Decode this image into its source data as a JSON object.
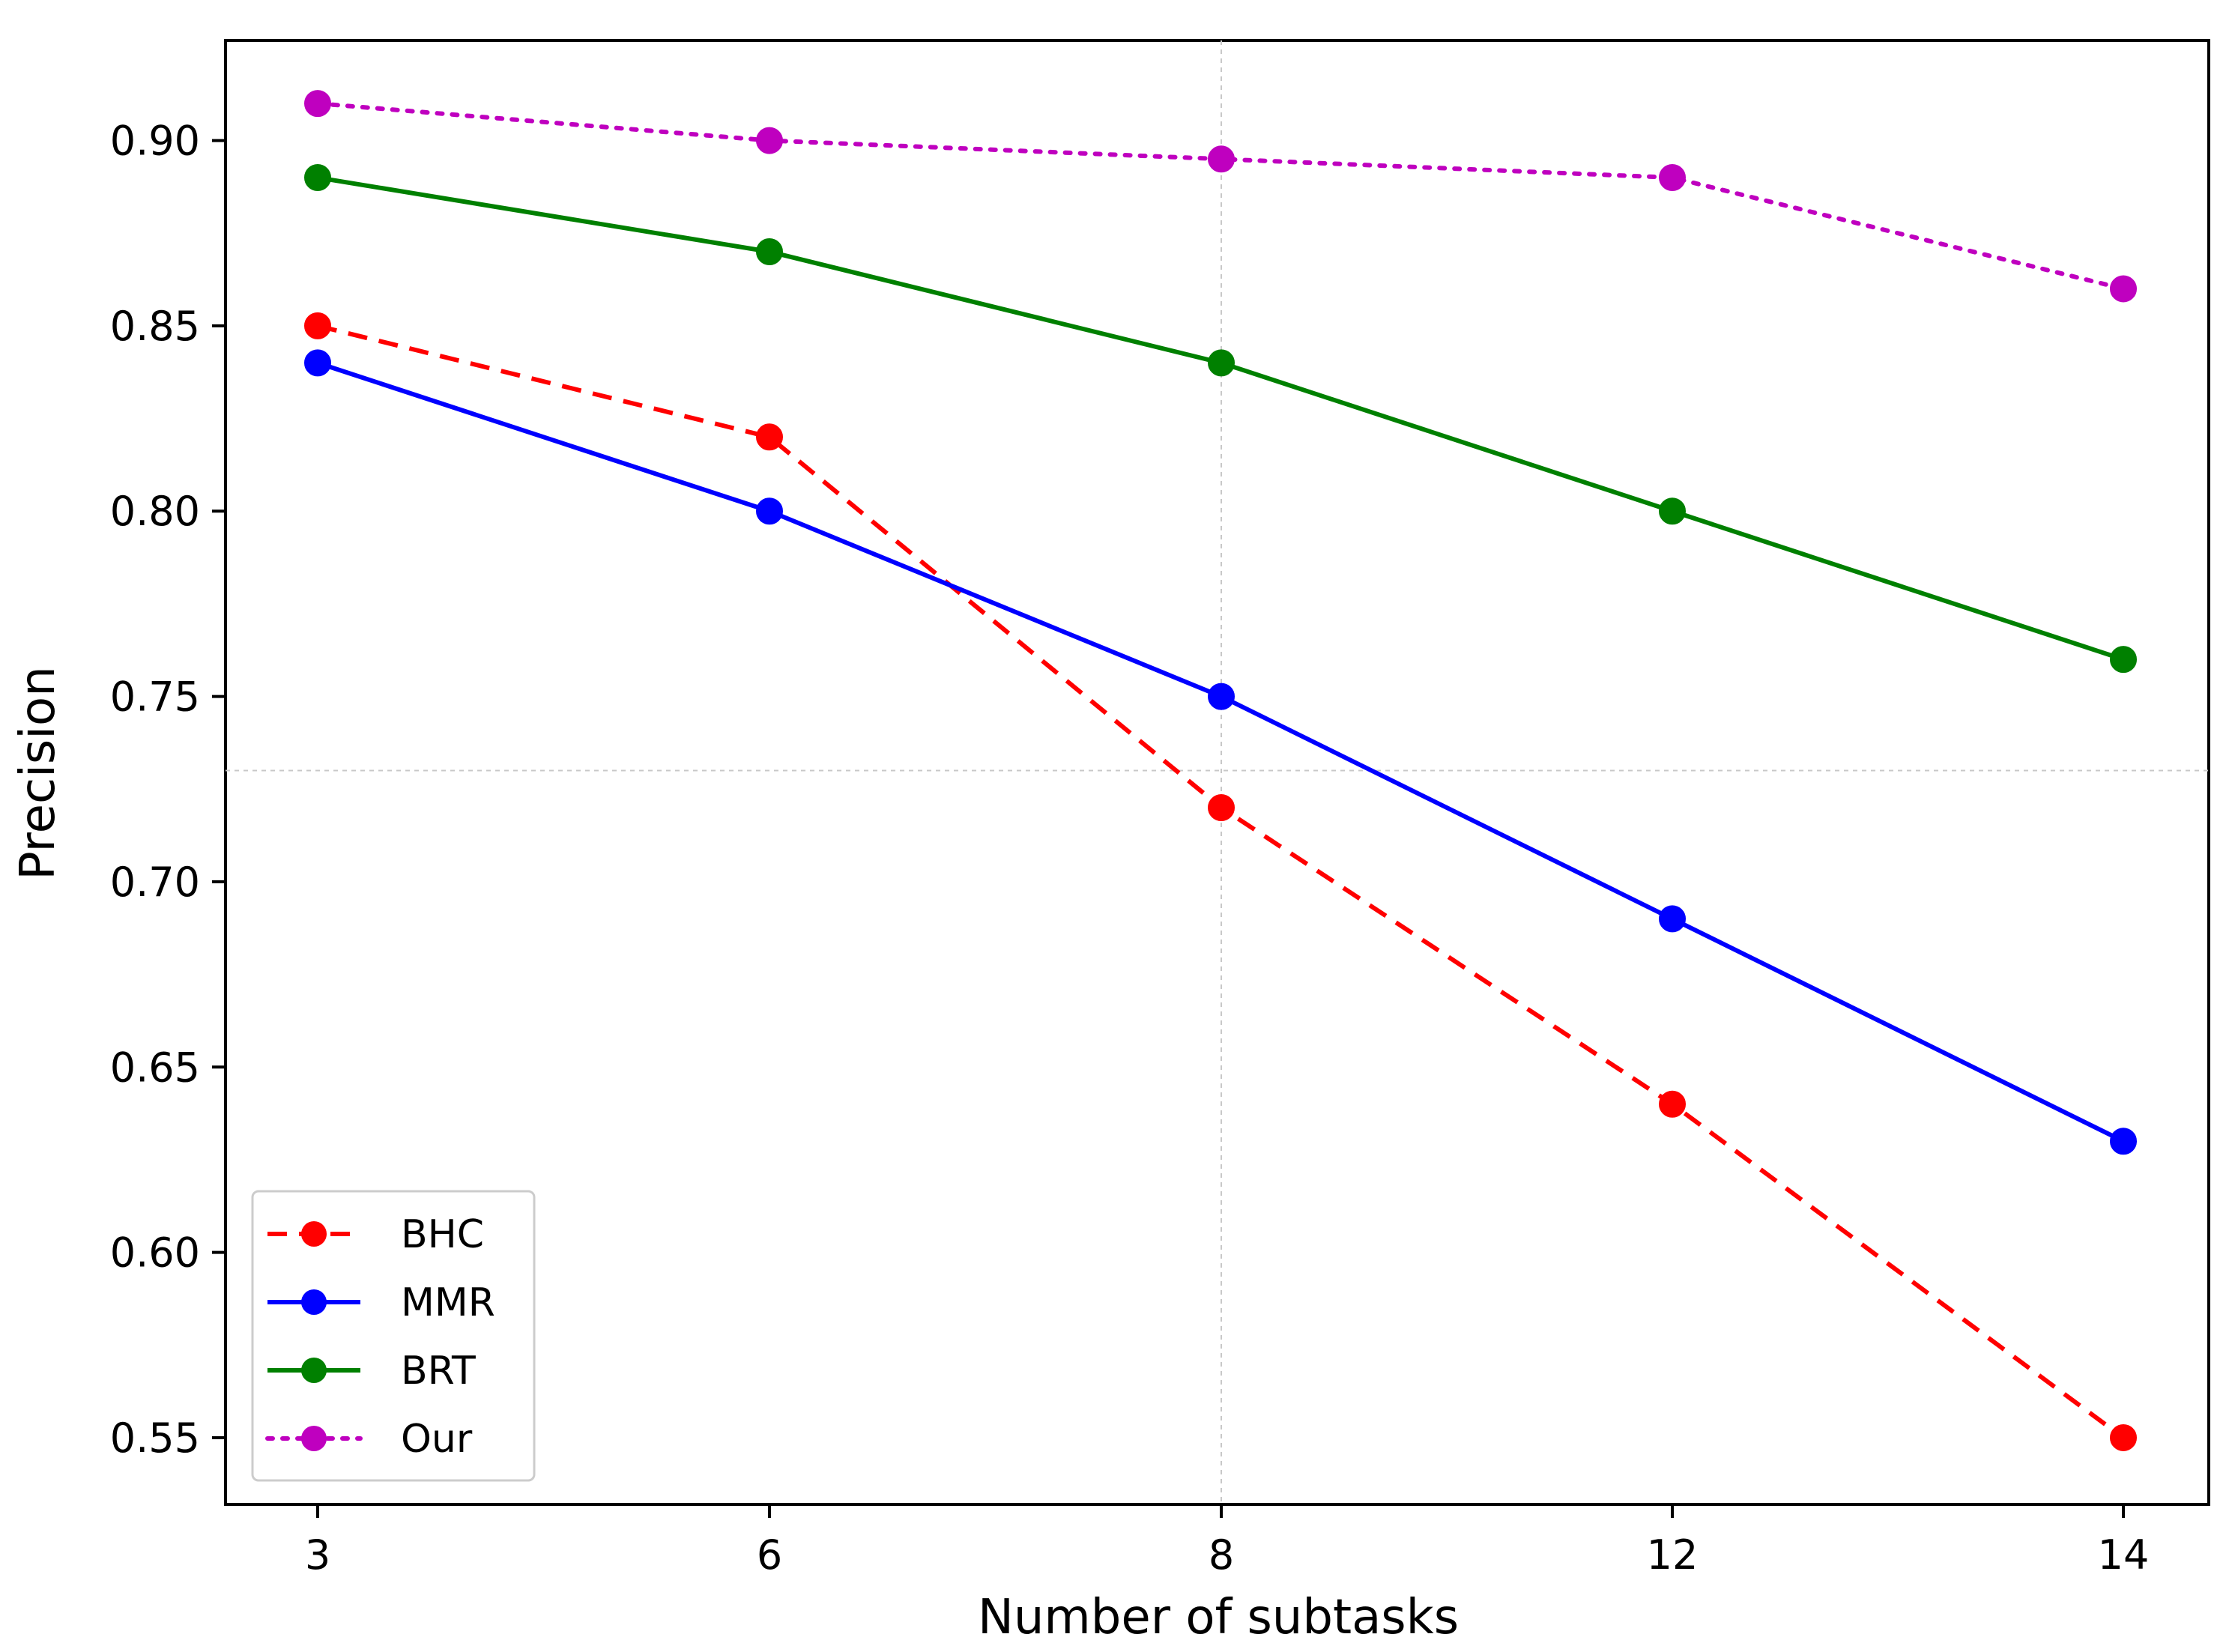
{
  "chart_data": {
    "type": "line",
    "title": "",
    "xlabel": "Number of subtasks",
    "ylabel": "Precision",
    "categories": [
      "3",
      "6",
      "8",
      "12",
      "14"
    ],
    "ylim": [
      0.532,
      0.927
    ],
    "yticks": [
      "0.55",
      "0.60",
      "0.65",
      "0.70",
      "0.75",
      "0.80",
      "0.85",
      "0.90"
    ],
    "grid": {
      "x_reference_category": "8",
      "y_reference_value": 0.73
    },
    "legend_position": "bottom-left",
    "series": [
      {
        "name": "BHC",
        "color": "#ff0000",
        "line_style": "dashed",
        "values": [
          0.85,
          0.82,
          0.72,
          0.64,
          0.55
        ]
      },
      {
        "name": "MMR",
        "color": "#0000ff",
        "line_style": "solid",
        "values": [
          0.84,
          0.8,
          0.75,
          0.69,
          0.63
        ]
      },
      {
        "name": "BRT",
        "color": "#008000",
        "line_style": "solid",
        "values": [
          0.89,
          0.87,
          0.84,
          0.8,
          0.76
        ]
      },
      {
        "name": "Our",
        "color": "#bf00bf",
        "line_style": "dotted",
        "values": [
          0.91,
          0.9,
          0.895,
          0.89,
          0.86
        ]
      }
    ]
  }
}
